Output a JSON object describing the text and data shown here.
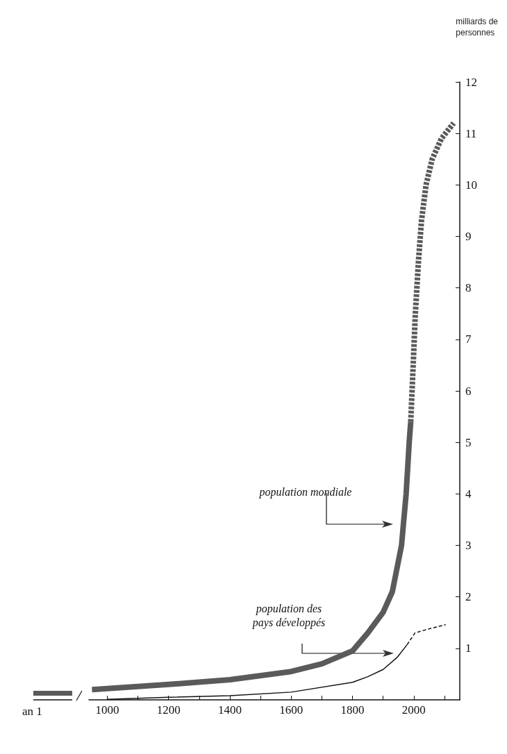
{
  "chart_data": {
    "type": "line",
    "ylabel": "milliards de\npersonnes",
    "xlim": [
      940,
      2150
    ],
    "ylim": [
      0,
      12
    ],
    "xticks": [
      1000,
      {
        "value": 1100,
        "label": null
      },
      1200,
      {
        "value": 1300,
        "label": null
      },
      1400,
      {
        "value": 1500,
        "label": null
      },
      1600,
      {
        "value": 1700,
        "label": null
      },
      1800,
      {
        "value": 1900,
        "label": null
      },
      2000,
      {
        "value": 2100,
        "label": null
      }
    ],
    "yticks": [
      1,
      2,
      3,
      4,
      5,
      6,
      7,
      8,
      9,
      10,
      11,
      12
    ],
    "series": [
      {
        "color": "#5a5a5a",
        "line_style": "solid",
        "x": [
          950,
          1000,
          1200,
          1400,
          1600,
          1700,
          1800,
          1850,
          1900,
          1930,
          1960,
          1975,
          1985,
          1990
        ],
        "values": [
          0.2,
          0.22,
          0.3,
          0.39,
          0.55,
          0.7,
          0.95,
          1.3,
          1.7,
          2.1,
          3.0,
          4.0,
          5.0,
          5.4
        ]
      },
      {
        "color": "#5a5a5a",
        "line_style": "dashed",
        "x": [
          1990,
          1998,
          2005,
          2015,
          2025,
          2040,
          2060,
          2090,
          2130
        ],
        "values": [
          5.4,
          6.5,
          7.5,
          8.5,
          9.3,
          10.0,
          10.5,
          10.9,
          11.2
        ]
      },
      {
        "color": "#111111",
        "line_style": "solid",
        "x": [
          1000,
          1200,
          1400,
          1600,
          1800,
          1850,
          1900,
          1945,
          1978
        ],
        "values": [
          0.01,
          0.05,
          0.08,
          0.15,
          0.34,
          0.45,
          0.59,
          0.82,
          1.07
        ]
      },
      {
        "color": "#111111",
        "line_style": "dashed",
        "x": [
          1978,
          2004,
          2044,
          2104
        ],
        "values": [
          1.07,
          1.3,
          1.37,
          1.46
        ]
      }
    ],
    "annotations": [
      "population mondiale",
      "population des\npays développés",
      "an 1"
    ]
  }
}
